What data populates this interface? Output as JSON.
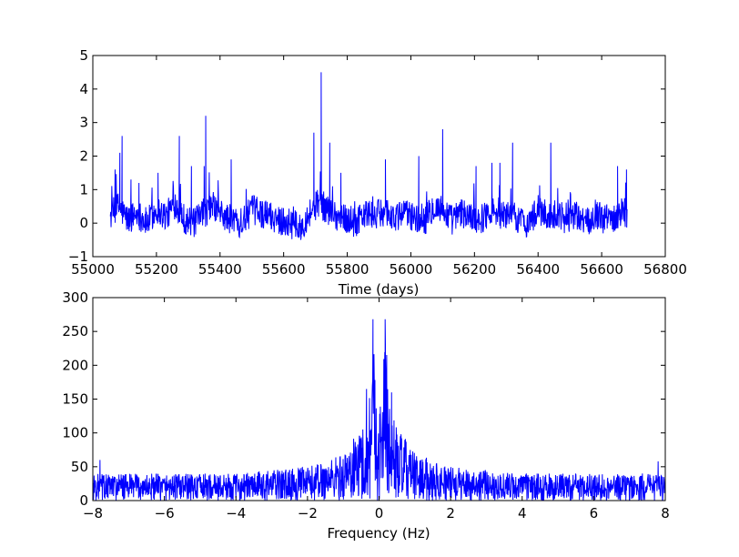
{
  "chart_data": [
    {
      "type": "line",
      "title": "",
      "xlabel": "Time (days)",
      "ylabel": "",
      "xlim": [
        55000,
        56800
      ],
      "ylim": [
        -1,
        5
      ],
      "xticks": [
        "55000",
        "55200",
        "55400",
        "55600",
        "55800",
        "56000",
        "56200",
        "56400",
        "56600",
        "56800"
      ],
      "yticks": [
        "−1",
        "0",
        "1",
        "2",
        "3",
        "4",
        "5"
      ],
      "grid": false,
      "line_color": "#0000ff",
      "data_range": [
        55055,
        56680
      ],
      "series": [
        {
          "x": [
            55055,
            55080,
            55110,
            55140,
            55170,
            55200,
            55230,
            55260,
            55290,
            55320,
            55350,
            55380,
            55410,
            55440,
            55470,
            55500,
            55530,
            55560,
            55590,
            55620,
            55650,
            55680,
            55710,
            55740,
            55770,
            55800,
            55830,
            55860,
            55890,
            55920,
            55950,
            55980,
            56010,
            56040,
            56070,
            56100,
            56130,
            56160,
            56190,
            56220,
            56250,
            56280,
            56310,
            56340,
            56370,
            56400,
            56430,
            56460,
            56490,
            56520,
            56550,
            56580,
            56610,
            56640,
            56670,
            56680
          ],
          "y": [
            0.2,
            0.5,
            0.1,
            0.3,
            0.0,
            0.4,
            0.2,
            0.6,
            0.1,
            0.0,
            0.3,
            0.5,
            0.2,
            0.1,
            0.0,
            0.4,
            0.3,
            0.2,
            0.1,
            0.0,
            -0.2,
            0.3,
            0.6,
            0.4,
            0.2,
            0.1,
            0.0,
            0.3,
            0.2,
            0.4,
            0.1,
            0.3,
            0.2,
            0.0,
            0.5,
            0.4,
            0.1,
            0.3,
            0.2,
            0.1,
            0.4,
            0.2,
            0.3,
            0.1,
            0.0,
            0.4,
            0.2,
            0.3,
            0.1,
            0.2,
            0.0,
            0.3,
            0.1,
            0.2,
            0.4,
            0.2
          ]
        }
      ],
      "peaks": [
        {
          "x": 55070,
          "y": 1.6
        },
        {
          "x": 55085,
          "y": 2.1
        },
        {
          "x": 55092,
          "y": 2.6
        },
        {
          "x": 55120,
          "y": 1.3
        },
        {
          "x": 55145,
          "y": 1.2
        },
        {
          "x": 55205,
          "y": 1.5
        },
        {
          "x": 55272,
          "y": 2.6
        },
        {
          "x": 55310,
          "y": 1.7
        },
        {
          "x": 55350,
          "y": 1.7
        },
        {
          "x": 55355,
          "y": 3.2
        },
        {
          "x": 55435,
          "y": 1.9
        },
        {
          "x": 55695,
          "y": 2.7
        },
        {
          "x": 55718,
          "y": 4.5
        },
        {
          "x": 55745,
          "y": 2.4
        },
        {
          "x": 55780,
          "y": 1.5
        },
        {
          "x": 55920,
          "y": 1.9
        },
        {
          "x": 56025,
          "y": 2.0
        },
        {
          "x": 56100,
          "y": 2.8
        },
        {
          "x": 56205,
          "y": 1.7
        },
        {
          "x": 56255,
          "y": 1.8
        },
        {
          "x": 56280,
          "y": 1.8
        },
        {
          "x": 56320,
          "y": 2.4
        },
        {
          "x": 56440,
          "y": 2.4
        },
        {
          "x": 56650,
          "y": 1.7
        },
        {
          "x": 56678,
          "y": 1.6
        }
      ]
    },
    {
      "type": "line",
      "title": "",
      "xlabel": "Frequency (Hz)",
      "ylabel": "",
      "xlim": [
        -8,
        8
      ],
      "ylim": [
        0,
        300
      ],
      "xticks": [
        "−8",
        "−6",
        "−4",
        "−2",
        "0",
        "2",
        "4",
        "6",
        "8"
      ],
      "yticks": [
        "0",
        "50",
        "100",
        "150",
        "200",
        "250",
        "300"
      ],
      "grid": false,
      "line_color": "#0000ff",
      "series": [
        {
          "x": [
            -8,
            -6,
            -4,
            -2,
            -1,
            -0.5,
            -0.3,
            -0.17,
            0,
            0.17,
            0.3,
            0.5,
            1,
            2,
            4,
            6,
            8
          ],
          "y": [
            40,
            40,
            40,
            50,
            70,
            110,
            140,
            265,
            120,
            265,
            140,
            110,
            70,
            50,
            40,
            40,
            40
          ]
        }
      ],
      "peaks": [
        {
          "x": -0.17,
          "y": 268
        },
        {
          "x": 0.17,
          "y": 268
        },
        {
          "x": -0.35,
          "y": 165
        },
        {
          "x": 0.35,
          "y": 160
        },
        {
          "x": -7.8,
          "y": 60
        },
        {
          "x": 7.8,
          "y": 58
        }
      ]
    }
  ]
}
